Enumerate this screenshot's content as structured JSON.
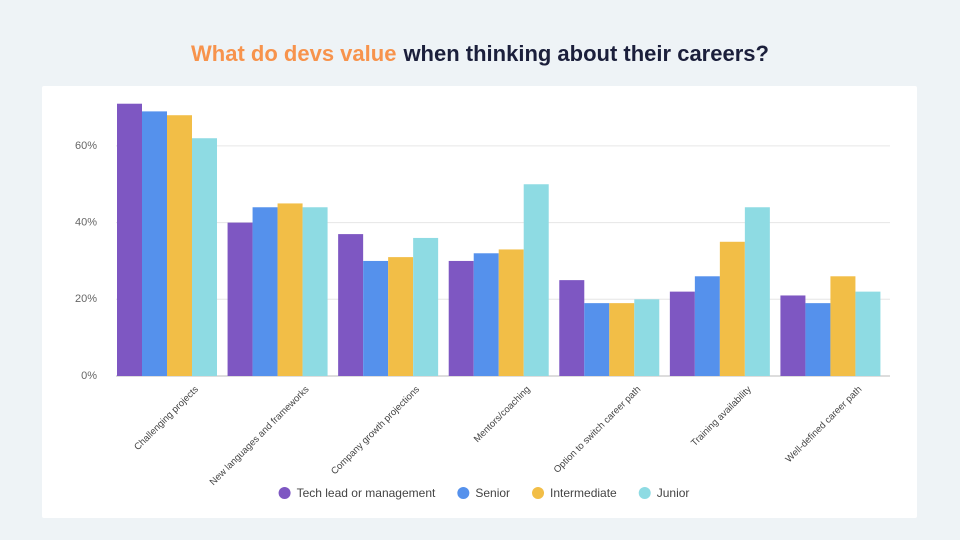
{
  "chart_data": {
    "type": "bar",
    "title_parts": [
      "What do devs value",
      "when thinking about their careers?"
    ],
    "categories": [
      "Challenging projects",
      "New languages and frameworks",
      "Company growth projections",
      "Mentors/coaching",
      "Option to switch career path",
      "Training availability",
      "Well-defined career path"
    ],
    "series": [
      {
        "name": "Tech lead or management",
        "color": "#7e57c2",
        "values": [
          71,
          40,
          37,
          30,
          25,
          22,
          21
        ]
      },
      {
        "name": "Senior",
        "color": "#5591ec",
        "values": [
          69,
          44,
          30,
          32,
          19,
          26,
          19
        ]
      },
      {
        "name": "Intermediate",
        "color": "#f2be47",
        "values": [
          68,
          45,
          31,
          33,
          19,
          35,
          26
        ]
      },
      {
        "name": "Junior",
        "color": "#8edbe3",
        "values": [
          62,
          44,
          36,
          50,
          20,
          44,
          22
        ]
      }
    ],
    "ylim": [
      0,
      72
    ],
    "yticks": [
      {
        "value": 0,
        "label": "0%"
      },
      {
        "value": 20,
        "label": "20%"
      },
      {
        "value": 40,
        "label": "40%"
      },
      {
        "value": 60,
        "label": "60%"
      }
    ],
    "grid": true,
    "legend": "bottom"
  }
}
